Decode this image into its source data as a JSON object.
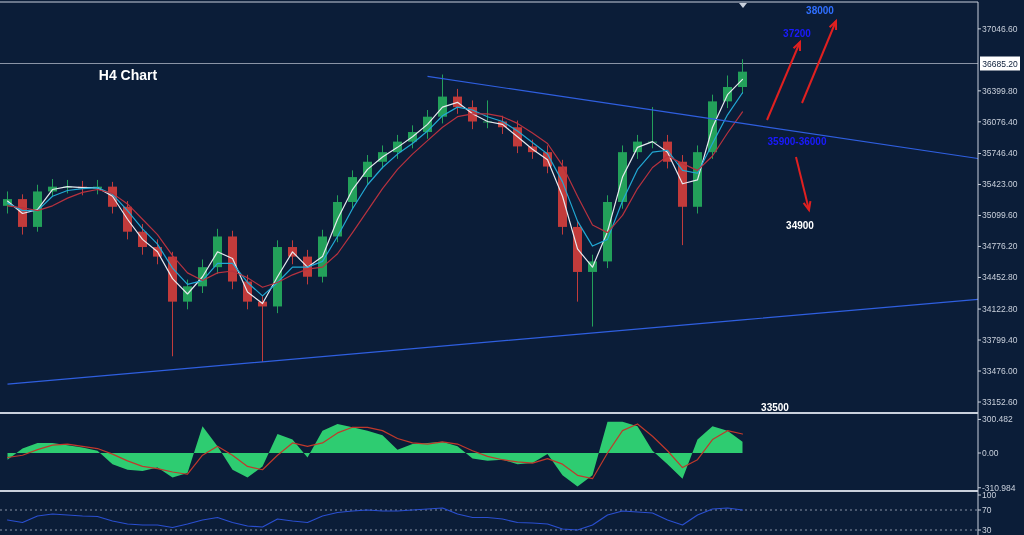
{
  "chart_data": [
    {
      "type": "candlestick",
      "title": "H4 Chart",
      "categories": [
        null,
        null,
        null,
        null,
        null,
        null,
        null,
        null,
        null,
        null,
        null,
        null,
        null,
        null,
        null,
        null,
        null,
        null,
        null,
        null,
        null,
        null,
        null,
        null,
        null,
        null,
        null,
        null,
        null,
        null,
        null,
        null,
        null,
        null,
        null,
        null,
        null,
        null,
        null,
        null,
        null,
        null,
        null,
        null,
        null,
        null,
        null,
        null,
        null,
        null
      ],
      "ohlc": [
        [
          35200,
          35350,
          35120,
          35270
        ],
        [
          35270,
          35320,
          34900,
          34980
        ],
        [
          34980,
          35420,
          34930,
          35350
        ],
        [
          35350,
          35480,
          35300,
          35400
        ],
        [
          35400,
          35470,
          35330,
          35400
        ],
        [
          35400,
          35460,
          35310,
          35380
        ],
        [
          35380,
          35470,
          35320,
          35400
        ],
        [
          35400,
          35450,
          35120,
          35190
        ],
        [
          35190,
          35250,
          34850,
          34930
        ],
        [
          34930,
          35010,
          34690,
          34770
        ],
        [
          34770,
          34850,
          34590,
          34670
        ],
        [
          34670,
          34720,
          33630,
          34200
        ],
        [
          34200,
          34430,
          34120,
          34360
        ],
        [
          34360,
          34640,
          34290,
          34560
        ],
        [
          34560,
          34960,
          34490,
          34880
        ],
        [
          34880,
          34940,
          34330,
          34410
        ],
        [
          34410,
          34480,
          34120,
          34200
        ],
        [
          34200,
          34260,
          33570,
          34150
        ],
        [
          34150,
          34840,
          34080,
          34770
        ],
        [
          34770,
          34840,
          34590,
          34670
        ],
        [
          34670,
          34740,
          34380,
          34460
        ],
        [
          34460,
          34950,
          34400,
          34880
        ],
        [
          34880,
          35310,
          34820,
          35240
        ],
        [
          35240,
          35570,
          35170,
          35500
        ],
        [
          35500,
          35730,
          35430,
          35660
        ],
        [
          35660,
          35830,
          35590,
          35760
        ],
        [
          35760,
          35940,
          35690,
          35870
        ],
        [
          35870,
          36040,
          35800,
          35970
        ],
        [
          35970,
          36200,
          35900,
          36130
        ],
        [
          36130,
          36570,
          36060,
          36340
        ],
        [
          36340,
          36420,
          36160,
          36230
        ],
        [
          36230,
          36300,
          36000,
          36080
        ],
        [
          36080,
          36300,
          36010,
          36080
        ],
        [
          36080,
          36140,
          35950,
          36020
        ],
        [
          36020,
          36090,
          35750,
          35820
        ],
        [
          35820,
          35890,
          35690,
          35760
        ],
        [
          35760,
          35830,
          35540,
          35610
        ],
        [
          35610,
          35680,
          34900,
          34980
        ],
        [
          34980,
          35050,
          34200,
          34510
        ],
        [
          34510,
          34690,
          33940,
          34620
        ],
        [
          34620,
          35310,
          34550,
          35240
        ],
        [
          35240,
          35830,
          35170,
          35760
        ],
        [
          35760,
          35940,
          35690,
          35870
        ],
        [
          35870,
          36230,
          35800,
          35870
        ],
        [
          35870,
          35940,
          35590,
          35660
        ],
        [
          35660,
          35730,
          34790,
          35190
        ],
        [
          35190,
          35830,
          35120,
          35760
        ],
        [
          35760,
          36360,
          35690,
          36290
        ],
        [
          36290,
          36560,
          36220,
          36440
        ],
        [
          36440,
          36730,
          36370,
          36600
        ]
      ],
      "series": [
        {
          "type": "line",
          "color": "#e6e9ef",
          "values": [
            35250,
            35120,
            35160,
            35370,
            35400,
            35390,
            35390,
            35300,
            35060,
            34850,
            34720,
            34440,
            34280,
            34460,
            34720,
            34650,
            34300,
            34180,
            34460,
            34720,
            34560,
            34670,
            35060,
            35370,
            35580,
            35710,
            35810,
            35920,
            36050,
            36230,
            36280,
            36160,
            36080,
            36050,
            35920,
            35790,
            35680,
            35300,
            34750,
            34560,
            34930,
            35500,
            35810,
            35870,
            35760,
            35430,
            35470,
            36020,
            36360,
            36520
          ]
        },
        {
          "type": "line",
          "color": "#22a9d4",
          "values": [
            35230,
            35150,
            35150,
            35300,
            35360,
            35380,
            35390,
            35320,
            35150,
            34960,
            34800,
            34550,
            34380,
            34420,
            34600,
            34600,
            34400,
            34260,
            34400,
            34560,
            34560,
            34620,
            34880,
            35170,
            35420,
            35600,
            35740,
            35850,
            35980,
            36140,
            36230,
            36200,
            36130,
            36080,
            35980,
            35860,
            35740,
            35450,
            35040,
            34780,
            34850,
            35250,
            35580,
            35760,
            35780,
            35570,
            35540,
            35850,
            36150,
            36380
          ]
        },
        {
          "type": "line",
          "color": "#b8323f",
          "values": [
            35200,
            35180,
            35150,
            35200,
            35280,
            35340,
            35370,
            35330,
            35220,
            35060,
            34900,
            34680,
            34500,
            34420,
            34500,
            34520,
            34450,
            34350,
            34400,
            34480,
            34540,
            34560,
            34700,
            34920,
            35150,
            35380,
            35580,
            35740,
            35880,
            36020,
            36130,
            36160,
            36160,
            36130,
            36060,
            35960,
            35850,
            35620,
            35300,
            35000,
            34920,
            35100,
            35380,
            35600,
            35720,
            35640,
            35570,
            35720,
            35960,
            36180
          ]
        },
        {
          "type": "line",
          "color": "#2f5fe0",
          "values": [
            null,
            null,
            null,
            null,
            null,
            null,
            null,
            null,
            null,
            null,
            null,
            null,
            null,
            null,
            null,
            null,
            null,
            null,
            null,
            null,
            null,
            null,
            null,
            null,
            null,
            null,
            null,
            null,
            36550,
            null,
            null,
            null,
            null,
            null,
            null,
            null,
            null,
            null,
            null,
            null,
            null,
            null,
            null,
            null,
            null,
            null,
            null,
            null,
            null,
            36060
          ]
        },
        {
          "type": "line",
          "color": "#2f5fe0",
          "values": [
            33340,
            null,
            null,
            null,
            null,
            null,
            null,
            null,
            null,
            null,
            null,
            null,
            null,
            null,
            null,
            null,
            null,
            null,
            null,
            null,
            null,
            null,
            null,
            null,
            null,
            null,
            null,
            null,
            null,
            null,
            null,
            null,
            null,
            null,
            null,
            null,
            null,
            null,
            null,
            null,
            null,
            null,
            null,
            null,
            null,
            null,
            null,
            null,
            null,
            34010
          ]
        }
      ],
      "ref_lines": [
        {
          "axis": "y",
          "value": 36685.2,
          "label": "36685.20",
          "color": "#8a94a6"
        }
      ],
      "annotations": [
        "38000",
        "37200",
        "35900-36000",
        "34900",
        "33500"
      ],
      "ylim": [
        33038,
        37327
      ],
      "yticks": [
        {
          "value": 33152.6,
          "label": "33152.60"
        },
        {
          "value": 33476,
          "label": "33476.00"
        },
        {
          "value": 33799.4,
          "label": "33799.40"
        },
        {
          "value": 34122.8,
          "label": "34122.80"
        },
        {
          "value": 34452.8,
          "label": "34452.80"
        },
        {
          "value": 34776.2,
          "label": "34776.20"
        },
        {
          "value": 35099.6,
          "label": "35099.60"
        },
        {
          "value": 35423,
          "label": "35423.00"
        },
        {
          "value": 35746.4,
          "label": "35746.40"
        },
        {
          "value": 36076.4,
          "label": "36076.40"
        },
        {
          "value": 36399.8,
          "label": "36399.80"
        },
        {
          "value": 37046.6,
          "label": "37046.60"
        }
      ],
      "tick_labels": "y"
    },
    {
      "type": "area",
      "categories": [
        null,
        null,
        null,
        null,
        null,
        null,
        null,
        null,
        null,
        null,
        null,
        null,
        null,
        null,
        null,
        null,
        null,
        null,
        null,
        null,
        null,
        null,
        null,
        null,
        null,
        null,
        null,
        null,
        null,
        null,
        null,
        null,
        null,
        null,
        null,
        null,
        null,
        null,
        null,
        null,
        null,
        null,
        null,
        null,
        null,
        null,
        null,
        null,
        null,
        null
      ],
      "series": [
        {
          "color": "#2ecc71",
          "values": [
            -60,
            40,
            90,
            90,
            70,
            50,
            20,
            -100,
            -150,
            -160,
            -130,
            -220,
            -180,
            240,
            60,
            -150,
            -220,
            -120,
            170,
            120,
            -40,
            200,
            260,
            230,
            200,
            160,
            30,
            80,
            90,
            100,
            60,
            -50,
            -70,
            -60,
            -100,
            -90,
            -10,
            -200,
            -300,
            -200,
            280,
            280,
            240,
            20,
            -100,
            -230,
            120,
            240,
            200,
            100
          ]
        },
        {
          "type": "line",
          "color": "#c0392b",
          "values": [
            -40,
            -20,
            30,
            70,
            80,
            60,
            40,
            -10,
            -70,
            -120,
            -140,
            -170,
            -190,
            -20,
            60,
            -20,
            -120,
            -150,
            -20,
            90,
            60,
            90,
            180,
            230,
            230,
            200,
            130,
            90,
            80,
            100,
            80,
            20,
            -30,
            -60,
            -80,
            -90,
            -50,
            -100,
            -200,
            -230,
            0,
            200,
            260,
            150,
            20,
            -130,
            -60,
            120,
            200,
            170
          ]
        }
      ],
      "ylim": [
        -340,
        358
      ],
      "yticks": [
        {
          "value": -310.984,
          "label": "-310.984"
        },
        {
          "value": 0,
          "label": "0.00"
        },
        {
          "value": 300.482,
          "label": "300.482"
        }
      ],
      "tick_labels": "y"
    },
    {
      "type": "line",
      "categories": [
        null,
        null,
        null,
        null,
        null,
        null,
        null,
        null,
        null,
        null,
        null,
        null,
        null,
        null,
        null,
        null,
        null,
        null,
        null,
        null,
        null,
        null,
        null,
        null,
        null,
        null,
        null,
        null,
        null,
        null,
        null,
        null,
        null,
        null,
        null,
        null,
        null,
        null,
        null,
        null,
        null,
        null,
        null,
        null,
        null,
        null,
        null,
        null,
        null,
        null
      ],
      "series": [
        {
          "color": "#2a4fd0",
          "values": [
            50,
            45,
            58,
            62,
            60,
            58,
            57,
            48,
            42,
            40,
            40,
            35,
            42,
            50,
            55,
            45,
            38,
            36,
            52,
            48,
            45,
            58,
            65,
            68,
            70,
            68,
            68,
            70,
            72,
            74,
            62,
            55,
            55,
            52,
            45,
            44,
            42,
            32,
            30,
            40,
            60,
            68,
            66,
            64,
            50,
            40,
            60,
            72,
            74,
            70
          ]
        }
      ],
      "ref_lines": [
        {
          "axis": "y",
          "value": 70,
          "color": "#8a94a6",
          "line_style": "dotted"
        },
        {
          "axis": "y",
          "value": 30,
          "color": "#8a94a6",
          "line_style": "dotted"
        }
      ],
      "ylim": [
        20,
        108
      ],
      "yticks": [
        30,
        70,
        100
      ],
      "tick_labels": "y"
    }
  ]
}
